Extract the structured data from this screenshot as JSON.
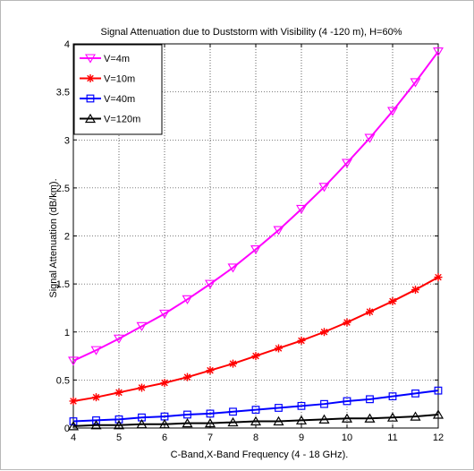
{
  "chart_data": {
    "type": "line",
    "title": "Signal Attenuation due to Duststorm with Visibility (4 -120 m), H=60%",
    "xlabel": "C-Band,X-Band Frequency (4 - 18 GHz).",
    "ylabel": "Signal Attenuation (dB/km).",
    "xlim": [
      4,
      12
    ],
    "ylim": [
      0,
      4
    ],
    "xticks": [
      "4",
      "5",
      "6",
      "7",
      "8",
      "9",
      "10",
      "11",
      "12"
    ],
    "yticks": [
      "0",
      "0.5",
      "1",
      "1.5",
      "2",
      "2.5",
      "3",
      "3.5",
      "4"
    ],
    "grid": true,
    "legend_position": "top-left",
    "x": [
      4,
      4.5,
      5,
      5.5,
      6,
      6.5,
      7,
      7.5,
      8,
      8.5,
      9,
      9.5,
      10,
      10.5,
      11,
      11.5,
      12
    ],
    "series": [
      {
        "name": "V=4m",
        "color": "#ff00ff",
        "marker": "triangle-down",
        "values": [
          0.7,
          0.81,
          0.93,
          1.06,
          1.19,
          1.34,
          1.5,
          1.67,
          1.86,
          2.06,
          2.28,
          2.51,
          2.76,
          3.02,
          3.3,
          3.6,
          3.92
        ]
      },
      {
        "name": "V=10m",
        "color": "#ff0000",
        "marker": "asterisk",
        "values": [
          0.28,
          0.32,
          0.37,
          0.42,
          0.47,
          0.53,
          0.6,
          0.67,
          0.75,
          0.83,
          0.91,
          1.0,
          1.1,
          1.21,
          1.32,
          1.44,
          1.57
        ]
      },
      {
        "name": "V=40m",
        "color": "#0000ff",
        "marker": "square",
        "values": [
          0.07,
          0.08,
          0.09,
          0.11,
          0.12,
          0.14,
          0.15,
          0.17,
          0.19,
          0.21,
          0.23,
          0.25,
          0.28,
          0.3,
          0.33,
          0.36,
          0.39
        ]
      },
      {
        "name": "V=120m",
        "color": "#000000",
        "marker": "triangle-up",
        "values": [
          0.02,
          0.03,
          0.03,
          0.04,
          0.04,
          0.05,
          0.05,
          0.06,
          0.07,
          0.07,
          0.08,
          0.09,
          0.1,
          0.1,
          0.11,
          0.12,
          0.14
        ]
      }
    ]
  }
}
